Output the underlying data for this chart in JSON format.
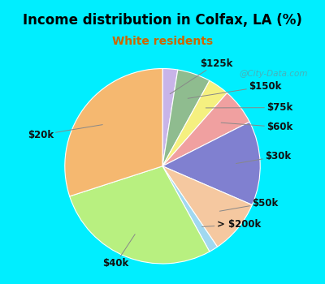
{
  "title": "Income distribution in Colfax, LA (%)",
  "subtitle": "White residents",
  "title_color": "#000000",
  "subtitle_color": "#cc6600",
  "background_outer": "#00eeff",
  "background_inner": "#dff0e0",
  "labels": [
    "$125k",
    "$150k",
    "$75k",
    "$60k",
    "$30k",
    "$50k",
    "> $200k",
    "$40k",
    "$20k"
  ],
  "sizes": [
    2.5,
    5.5,
    3.5,
    6.0,
    14.0,
    9.0,
    1.5,
    28.0,
    30.0
  ],
  "colors": [
    "#c8b4e8",
    "#8fbc8f",
    "#f5f080",
    "#f0a0a0",
    "#8080d0",
    "#f5c8a0",
    "#a0d8f0",
    "#b8f080",
    "#f5b870"
  ],
  "startangle": 90,
  "label_fontsize": 8.5,
  "watermark": "@City-Data.com"
}
